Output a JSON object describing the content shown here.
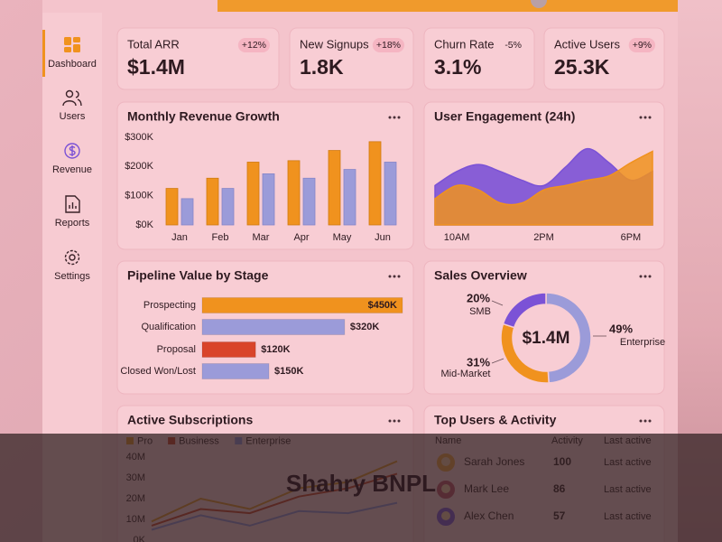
{
  "sidebar": {
    "items": [
      "Dashboard",
      "Users",
      "Revenue",
      "Reports",
      "Settings"
    ]
  },
  "kpis": [
    {
      "label": "Total ARR",
      "value": "$1.4M",
      "change": "+12%"
    },
    {
      "label": "New Signups",
      "value": "1.8K",
      "change": "+18%"
    },
    {
      "label": "Churn Rate",
      "value": "3.1%",
      "change": "-5%"
    },
    {
      "label": "Active Users",
      "value": "25.3K",
      "change": "+9%"
    }
  ],
  "chart_data": [
    {
      "type": "bar",
      "title": "Monthly Revenue Growth",
      "categories": [
        "Jan",
        "Feb",
        "Mar",
        "Apr",
        "May",
        "Jun"
      ],
      "series": [
        {
          "color": "#f0921e",
          "values": [
            125000,
            160000,
            215000,
            220000,
            255000,
            285000
          ]
        },
        {
          "color": "#9b9bd9",
          "values": [
            90000,
            125000,
            175000,
            160000,
            190000,
            215000
          ]
        }
      ],
      "ylim": [
        0,
        300000
      ],
      "yticks": [
        {
          "value": 0,
          "label": "$0K"
        },
        {
          "value": 100000,
          "label": "$100K"
        },
        {
          "value": 200000,
          "label": "$200K"
        },
        {
          "value": 300000,
          "label": "$300K"
        }
      ],
      "grid": false
    },
    {
      "type": "area",
      "title": "User Engagement (24h)",
      "categories": [
        null,
        "10AM",
        null,
        null,
        null,
        "2PM",
        null,
        null,
        null,
        "6PM",
        null
      ],
      "series": [
        {
          "color": "#7b52d6",
          "values": [
            45,
            61,
            69,
            61,
            51,
            45,
            66,
            87,
            71,
            51,
            61
          ]
        },
        {
          "color": "#f0921e",
          "values": [
            30,
            45,
            40,
            25,
            25,
            40,
            45,
            51,
            56,
            71,
            84
          ]
        }
      ],
      "ylim": [
        0,
        100
      ]
    },
    {
      "type": "hbar",
      "title": "Pipeline Value by Stage",
      "categories": [
        "Prospecting",
        "Qualification",
        "Proposal",
        "Closed Won/Lost"
      ],
      "values": [
        450000,
        320000,
        120000,
        150000
      ],
      "value_labels": [
        "$450K",
        "$320K",
        "$120K",
        "$150K"
      ],
      "colors": [
        "#f0921e",
        "#9b9bd9",
        "#d9442a",
        "#9b9bd9"
      ],
      "xlim": [
        0,
        450000
      ]
    },
    {
      "type": "donut",
      "title": "Sales Overview",
      "center_label": "$1.4M",
      "categories": [
        "Enterprise",
        "Mid-Market",
        "SMB"
      ],
      "values": [
        49,
        31,
        20
      ],
      "value_labels": [
        "49%",
        "31%",
        "20%"
      ],
      "colors": [
        "#9b9bd9",
        "#f0921e",
        "#7b52d6"
      ]
    },
    {
      "type": "line",
      "title": "Active Subscriptions",
      "categories": [
        null,
        null,
        null,
        null,
        null,
        null
      ],
      "series": [
        {
          "name": "Pro",
          "color": "#e0902a",
          "values": [
            9000000,
            20000000,
            15000000,
            25000000,
            28000000,
            38000000
          ]
        },
        {
          "name": "Business",
          "color": "#c8402a",
          "values": [
            7000000,
            15000000,
            13000000,
            21000000,
            25000000,
            32000000
          ]
        },
        {
          "name": "Enterprise",
          "color": "#8f8fd8",
          "values": [
            5000000,
            12000000,
            7000000,
            14000000,
            13000000,
            18000000
          ]
        }
      ],
      "ylim": [
        0,
        40000000
      ],
      "yticks": [
        {
          "value": 0,
          "label": "0K"
        },
        {
          "value": 10000000,
          "label": "10M"
        },
        {
          "value": 20000000,
          "label": "20M"
        },
        {
          "value": 30000000,
          "label": "30M"
        },
        {
          "value": 40000000,
          "label": "40M"
        }
      ],
      "legend": "top-left"
    }
  ],
  "table": {
    "title": "Top Users & Activity",
    "columns": [
      "Name",
      "Activity",
      "Last active"
    ],
    "rows": [
      [
        "Sarah Jones",
        100,
        "Last active"
      ],
      [
        "Mark Lee",
        86,
        "Last active"
      ],
      [
        "Alex Chen",
        57,
        "Last active"
      ]
    ]
  },
  "banner": "Shahry BNPL"
}
